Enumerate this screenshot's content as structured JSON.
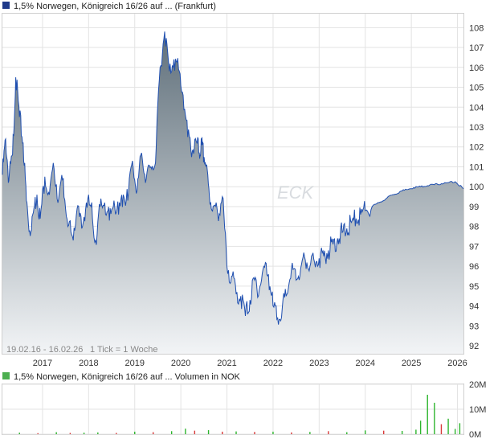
{
  "price_panel": {
    "legend": "1,5% Norwegen, Königreich 16/26 auf ... (Frankfurt)",
    "legend_color": "#1f3a8a",
    "range_note": "19.02.16 - 16.02.26",
    "tick_note": "1 Tick = 1 Woche",
    "watermark": "ECK"
  },
  "volume_panel": {
    "legend": "1,5% Norwegen, Königreich 16/26 auf ... Volumen in NOK",
    "legend_color": "#4caf50"
  },
  "colors": {
    "line": "#1f4fb0",
    "area_top": "#5f6f7a",
    "area_bottom": "#f2f4f6",
    "volume_up": "#2db52d",
    "volume_down": "#d83a3a",
    "grid": "#e3e3e3"
  },
  "chart_data": [
    {
      "type": "area",
      "x_label_ticks": [
        "2017",
        "2018",
        "2019",
        "2020",
        "2021",
        "2022",
        "2023",
        "2024",
        "2025",
        "2026"
      ],
      "y_ticks": [
        92,
        93,
        94,
        95,
        96,
        97,
        98,
        99,
        100,
        101,
        102,
        103,
        104,
        105,
        106,
        107,
        108
      ],
      "ylim": [
        91.6,
        108.7
      ],
      "xlim": [
        2016.13,
        2026.13
      ],
      "grid": true,
      "series": [
        {
          "x": [
            2016.13,
            2016.2,
            2016.27,
            2016.35,
            2016.42,
            2016.5,
            2016.58,
            2016.65,
            2016.72,
            2016.8,
            2016.88,
            2016.95,
            2017.05,
            2017.15,
            2017.25,
            2017.35,
            2017.45,
            2017.55,
            2017.65,
            2017.75,
            2017.85,
            2017.95,
            2018.05,
            2018.15,
            2018.25,
            2018.35,
            2018.45,
            2018.55,
            2018.65,
            2018.75,
            2018.85,
            2018.95,
            2019.05,
            2019.15,
            2019.25,
            2019.35,
            2019.45,
            2019.55,
            2019.65,
            2019.75,
            2019.85,
            2019.95,
            2020.05,
            2020.15,
            2020.25,
            2020.33,
            2020.4,
            2020.45,
            2020.5,
            2020.55,
            2020.62,
            2020.7,
            2020.8,
            2020.9,
            2021.0,
            2021.1,
            2021.2,
            2021.3,
            2021.4,
            2021.5,
            2021.6,
            2021.7,
            2021.8,
            2021.9,
            2022.0,
            2022.1,
            2022.2,
            2022.3,
            2022.4,
            2022.5,
            2022.6,
            2022.7,
            2022.8,
            2022.9,
            2023.0,
            2023.1,
            2023.2,
            2023.3,
            2023.4,
            2023.5,
            2023.6,
            2023.7,
            2023.8,
            2023.9,
            2024.0,
            2024.15,
            2024.3,
            2024.45,
            2024.6,
            2024.75,
            2024.9,
            2025.05,
            2025.2,
            2025.35,
            2025.5,
            2025.65,
            2025.8,
            2025.95,
            2026.13
          ],
          "values": [
            100.6,
            102.4,
            100.3,
            101.6,
            105.5,
            103.5,
            102.2,
            99.3,
            97.8,
            98.7,
            99.6,
            98.4,
            100.5,
            99.6,
            100.9,
            99.4,
            100.4,
            98.0,
            97.5,
            98.9,
            97.9,
            99.2,
            99.0,
            97.3,
            99.0,
            99.2,
            98.3,
            99.3,
            98.6,
            99.6,
            99.3,
            101.3,
            99.8,
            101.7,
            100.4,
            101.0,
            101.2,
            106.0,
            107.8,
            105.8,
            106.4,
            105.9,
            104.6,
            102.5,
            101.8,
            102.3,
            101.7,
            102.1,
            101.5,
            101.1,
            99.5,
            99.0,
            98.6,
            99.5,
            96.0,
            95.5,
            94.6,
            94.5,
            93.5,
            94.3,
            95.3,
            94.8,
            96.0,
            95.6,
            94.0,
            93.4,
            93.9,
            94.6,
            95.9,
            95.3,
            95.9,
            96.3,
            96.0,
            96.2,
            96.4,
            96.5,
            96.8,
            97.1,
            97.4,
            97.7,
            97.9,
            98.2,
            98.4,
            98.6,
            98.8,
            99.0,
            99.2,
            99.4,
            99.6,
            99.75,
            99.85,
            99.95,
            100.0,
            100.05,
            100.1,
            100.15,
            100.2,
            100.25,
            99.9
          ]
        }
      ]
    },
    {
      "type": "bar",
      "ylim": [
        0,
        20
      ],
      "y_ticks": [
        0,
        10,
        20
      ],
      "y_tick_labels": [
        "0M",
        "10M",
        "20M"
      ],
      "grid": true,
      "series": [
        {
          "x": [
            2016.5,
            2016.9,
            2017.3,
            2017.6,
            2017.9,
            2018.2,
            2018.6,
            2019.0,
            2019.4,
            2019.8,
            2020.1,
            2020.3,
            2020.6,
            2020.9,
            2021.2,
            2021.6,
            2022.0,
            2022.4,
            2022.8,
            2023.2,
            2023.6,
            2024.0,
            2024.4,
            2024.8,
            2025.1,
            2025.2,
            2025.35,
            2025.5,
            2025.65,
            2025.8,
            2025.95,
            2026.05
          ],
          "values": [
            0.6,
            0.4,
            0.8,
            0.5,
            0.6,
            0.7,
            0.5,
            1.0,
            0.8,
            1.2,
            2.2,
            1.4,
            1.6,
            1.0,
            1.1,
            0.9,
            1.0,
            0.7,
            0.9,
            1.2,
            0.8,
            1.5,
            1.4,
            1.3,
            1.8,
            5.4,
            15.8,
            12.6,
            4.0,
            6.2,
            2.1,
            4.4
          ],
          "colors": [
            "up",
            "down",
            "up",
            "down",
            "up",
            "up",
            "down",
            "up",
            "down",
            "up",
            "up",
            "down",
            "up",
            "down",
            "up",
            "down",
            "up",
            "down",
            "up",
            "down",
            "up",
            "up",
            "down",
            "up",
            "up",
            "up",
            "up",
            "up",
            "down",
            "up",
            "up",
            "up"
          ]
        }
      ]
    }
  ]
}
